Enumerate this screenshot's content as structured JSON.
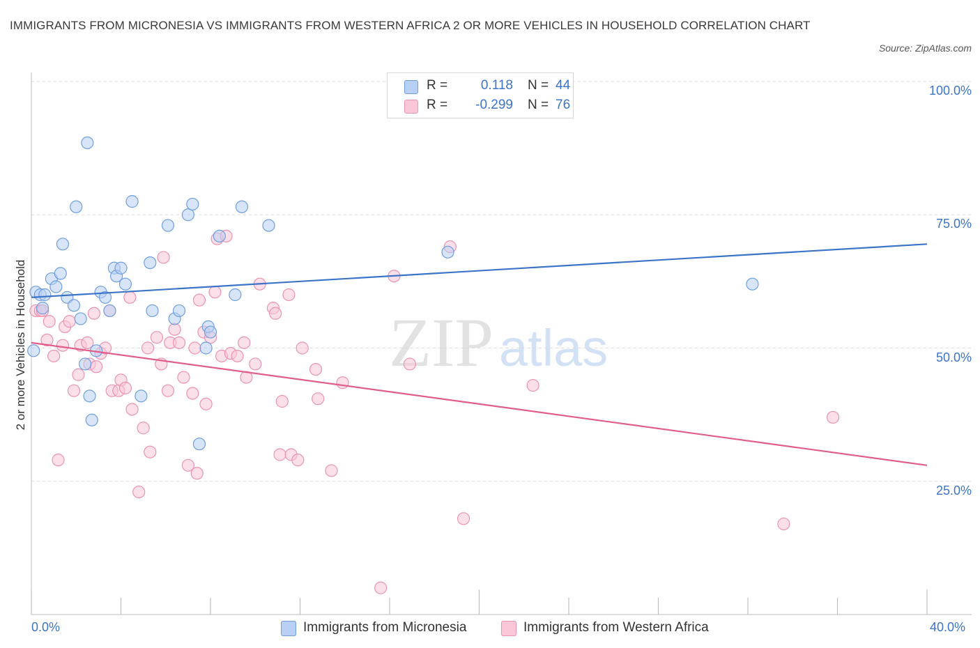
{
  "title": "IMMIGRANTS FROM MICRONESIA VS IMMIGRANTS FROM WESTERN AFRICA 2 OR MORE VEHICLES IN HOUSEHOLD CORRELATION CHART",
  "source": "Source: ZipAtlas.com",
  "watermark": {
    "zip": "ZIP",
    "atlas": "atlas"
  },
  "legend": {
    "rows": [
      {
        "r_label": "R =",
        "r_value": "0.118",
        "n_label": "N =",
        "n_value": "44"
      },
      {
        "r_label": "R =",
        "r_value": "-0.299",
        "n_label": "N =",
        "n_value": "76"
      }
    ]
  },
  "colors": {
    "blue": "#3b74c8",
    "blue_fill": "#b8d0f4",
    "blue_stroke": "#6f9ee0",
    "pink": "#e05d8c",
    "pink_fill": "#f9c7d7",
    "pink_stroke": "#eb93b2",
    "grid": "#dcdcdc",
    "axis": "#bfbfbf"
  },
  "chart_data": {
    "type": "scatter",
    "xlabel": "",
    "ylabel": "2 or more Vehicles in Household",
    "xlim": [
      0,
      40
    ],
    "ylim": [
      0,
      100
    ],
    "x_tick_labels": [
      "0.0%",
      "40.0%"
    ],
    "y_ticks": [
      25,
      50,
      75,
      100
    ],
    "y_tick_labels": [
      "25.0%",
      "50.0%",
      "75.0%",
      "100.0%"
    ],
    "grid": true,
    "legend_position": "bottom",
    "series": [
      {
        "name": "Immigrants from Micronesia",
        "color": "#3b74c8",
        "trend": {
          "x": [
            0,
            40
          ],
          "y": [
            59.5,
            69.5
          ]
        },
        "points": [
          [
            0.1,
            49.5
          ],
          [
            0.2,
            60.5
          ],
          [
            0.4,
            60
          ],
          [
            0.5,
            57.5
          ],
          [
            0.6,
            60
          ],
          [
            0.9,
            63
          ],
          [
            1.1,
            61.5
          ],
          [
            1.3,
            64
          ],
          [
            1.4,
            69.5
          ],
          [
            1.6,
            59.5
          ],
          [
            1.9,
            58
          ],
          [
            2.0,
            76.5
          ],
          [
            2.2,
            55.5
          ],
          [
            2.4,
            47
          ],
          [
            2.5,
            88.5
          ],
          [
            2.6,
            41
          ],
          [
            2.7,
            36.5
          ],
          [
            2.9,
            49.5
          ],
          [
            3.1,
            60.5
          ],
          [
            3.3,
            59.5
          ],
          [
            3.5,
            57
          ],
          [
            3.7,
            65
          ],
          [
            3.8,
            63.5
          ],
          [
            4.0,
            65
          ],
          [
            4.2,
            62
          ],
          [
            4.5,
            77.5
          ],
          [
            4.9,
            41
          ],
          [
            5.3,
            66
          ],
          [
            5.4,
            57
          ],
          [
            6.1,
            73
          ],
          [
            6.4,
            55.5
          ],
          [
            6.6,
            57
          ],
          [
            7.0,
            75
          ],
          [
            7.2,
            77
          ],
          [
            7.5,
            32
          ],
          [
            7.8,
            50
          ],
          [
            7.9,
            54
          ],
          [
            8.0,
            53
          ],
          [
            8.4,
            71
          ],
          [
            9.1,
            60
          ],
          [
            9.4,
            76.5
          ],
          [
            10.6,
            73
          ],
          [
            18.6,
            68
          ],
          [
            32.2,
            62
          ]
        ]
      },
      {
        "name": "Immigrants from Western Africa",
        "color": "#e05d8c",
        "trend": {
          "x": [
            0,
            40
          ],
          "y": [
            51,
            28
          ]
        },
        "points": [
          [
            0.2,
            57
          ],
          [
            0.4,
            57
          ],
          [
            0.5,
            57
          ],
          [
            0.7,
            51.5
          ],
          [
            0.8,
            55
          ],
          [
            1.0,
            48.5
          ],
          [
            1.2,
            29
          ],
          [
            1.4,
            50.5
          ],
          [
            1.5,
            54
          ],
          [
            1.7,
            55
          ],
          [
            1.9,
            42
          ],
          [
            2.1,
            45
          ],
          [
            2.2,
            50.5
          ],
          [
            2.5,
            51
          ],
          [
            2.6,
            47
          ],
          [
            2.8,
            56.5
          ],
          [
            2.9,
            46.5
          ],
          [
            3.1,
            49
          ],
          [
            3.3,
            50
          ],
          [
            3.5,
            57
          ],
          [
            3.6,
            42
          ],
          [
            3.9,
            42
          ],
          [
            4.0,
            44
          ],
          [
            4.2,
            42.5
          ],
          [
            4.4,
            59.5
          ],
          [
            4.5,
            38.5
          ],
          [
            4.8,
            23
          ],
          [
            5.0,
            35
          ],
          [
            5.2,
            50
          ],
          [
            5.3,
            30.5
          ],
          [
            5.6,
            52
          ],
          [
            5.8,
            47
          ],
          [
            5.9,
            67
          ],
          [
            6.1,
            42
          ],
          [
            6.2,
            51
          ],
          [
            6.4,
            53.5
          ],
          [
            6.6,
            51
          ],
          [
            6.8,
            44.5
          ],
          [
            7.0,
            28
          ],
          [
            7.2,
            41.5
          ],
          [
            7.4,
            26.5
          ],
          [
            7.5,
            59
          ],
          [
            7.7,
            53
          ],
          [
            7.8,
            39.5
          ],
          [
            8.0,
            52
          ],
          [
            8.2,
            60.5
          ],
          [
            8.3,
            70.5
          ],
          [
            8.5,
            48.5
          ],
          [
            8.7,
            71
          ],
          [
            8.9,
            49
          ],
          [
            9.2,
            48.5
          ],
          [
            9.5,
            51
          ],
          [
            9.6,
            44.5
          ],
          [
            10.0,
            47
          ],
          [
            10.2,
            62
          ],
          [
            10.8,
            57.5
          ],
          [
            10.9,
            56.5
          ],
          [
            11.1,
            30
          ],
          [
            11.2,
            40
          ],
          [
            11.5,
            60
          ],
          [
            11.6,
            30
          ],
          [
            11.9,
            29
          ],
          [
            12.1,
            50
          ],
          [
            12.7,
            46
          ],
          [
            12.8,
            40.5
          ],
          [
            13.4,
            27
          ],
          [
            13.9,
            43.5
          ],
          [
            15.6,
            5
          ],
          [
            16.2,
            63.5
          ],
          [
            16.9,
            47
          ],
          [
            18.7,
            69
          ],
          [
            19.3,
            18
          ],
          [
            22.4,
            43
          ],
          [
            33.6,
            17
          ],
          [
            35.8,
            37
          ],
          [
            7.3,
            50
          ]
        ]
      }
    ]
  }
}
